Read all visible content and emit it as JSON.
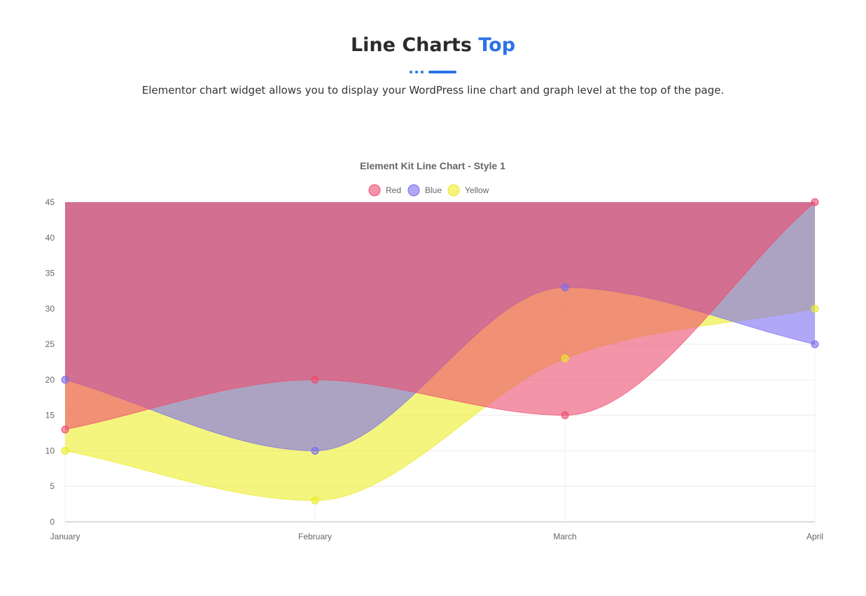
{
  "header": {
    "title_main": "Line Charts",
    "title_accent": "Top",
    "description": "Elementor chart widget allows you to display your WordPress line chart and graph level at the top of the page."
  },
  "chart_data": {
    "type": "area",
    "title": "Element Kit Line Chart - Style 1",
    "categories": [
      "January",
      "February",
      "March",
      "April"
    ],
    "ylim": [
      0,
      45
    ],
    "yticks": [
      0,
      5,
      10,
      15,
      20,
      25,
      30,
      35,
      40,
      45
    ],
    "grid": true,
    "legend_position": "top",
    "fill_mode": "fill to top",
    "series": [
      {
        "name": "Red",
        "values": [
          13,
          20,
          15,
          45
        ],
        "color": "#ed4d6e",
        "fill": "rgba(237,77,110,0.6)"
      },
      {
        "name": "Blue",
        "values": [
          20,
          10,
          33,
          25
        ],
        "color": "#7b6cf0",
        "fill": "rgba(123,108,240,0.6)"
      },
      {
        "name": "Yellow",
        "values": [
          10,
          3,
          23,
          30
        ],
        "color": "#e8ea1a",
        "fill": "rgba(237,239,40,0.6)"
      }
    ]
  }
}
